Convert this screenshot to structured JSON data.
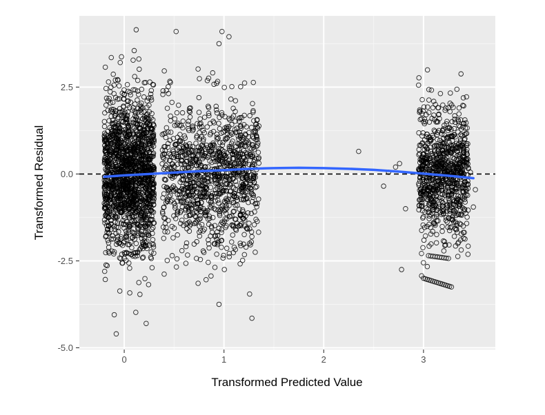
{
  "chart_data": {
    "type": "scatter",
    "xlabel": "Transformed Predicted Value",
    "ylabel": "Transformed Residual",
    "xlim": [
      -0.45,
      3.72
    ],
    "ylim": [
      -5.05,
      4.55
    ],
    "x_ticks": [
      0,
      1,
      2,
      3
    ],
    "x_tick_labels": [
      "0",
      "1",
      "2",
      "3"
    ],
    "y_ticks": [
      -5.0,
      -2.5,
      0.0,
      2.5
    ],
    "y_tick_labels": [
      "-5.0",
      "-2.5",
      "0.0",
      "2.5"
    ],
    "grid": true,
    "legend": "none",
    "reference_line": {
      "y": 0.0,
      "style": "dashed",
      "color": "#000000"
    },
    "smooth_curve": {
      "color": "#3366FF",
      "x": [
        -0.2,
        0.0,
        0.25,
        0.5,
        0.75,
        1.0,
        1.25,
        1.5,
        1.75,
        2.0,
        2.25,
        2.5,
        2.75,
        3.0,
        3.25,
        3.5
      ],
      "y": [
        -0.08,
        -0.04,
        0.0,
        0.04,
        0.08,
        0.11,
        0.15,
        0.17,
        0.18,
        0.17,
        0.15,
        0.12,
        0.07,
        0.01,
        -0.05,
        -0.12
      ]
    },
    "clusters": [
      {
        "x_range": [
          -0.2,
          0.3
        ],
        "n": 1700,
        "y_sd": 1.1
      },
      {
        "x_range": [
          0.38,
          0.65
        ],
        "n": 260,
        "y_sd": 1.0
      },
      {
        "x_range": [
          0.65,
          1.2
        ],
        "n": 700,
        "y_sd": 1.05
      },
      {
        "x_range": [
          1.18,
          1.35
        ],
        "n": 170,
        "y_sd": 1.1
      },
      {
        "x_range": [
          2.95,
          3.45
        ],
        "n": 900,
        "y_sd": 0.95
      }
    ],
    "extra_points": [
      {
        "x": -0.13,
        "y": 3.35
      },
      {
        "x": 0.12,
        "y": 4.15
      },
      {
        "x": 0.52,
        "y": 4.1
      },
      {
        "x": 0.98,
        "y": 4.1
      },
      {
        "x": 1.05,
        "y": 3.95
      },
      {
        "x": 0.95,
        "y": 3.75
      },
      {
        "x": 0.1,
        "y": 3.55
      },
      {
        "x": -0.08,
        "y": -4.6
      },
      {
        "x": -0.1,
        "y": -4.05
      },
      {
        "x": 0.22,
        "y": -4.3
      },
      {
        "x": 1.28,
        "y": -4.15
      },
      {
        "x": 0.95,
        "y": -3.75
      },
      {
        "x": 2.35,
        "y": 0.65
      },
      {
        "x": 2.6,
        "y": -0.35
      },
      {
        "x": 2.65,
        "y": 0.05
      },
      {
        "x": 2.72,
        "y": 0.2
      },
      {
        "x": 2.76,
        "y": 0.3
      },
      {
        "x": 2.78,
        "y": -2.75
      },
      {
        "x": 2.82,
        "y": -1.0
      },
      {
        "x": 3.5,
        "y": -0.95
      },
      {
        "x": 3.52,
        "y": -0.45
      },
      {
        "x": 3.47,
        "y": 0.05
      }
    ],
    "band_points": {
      "x_start": 3.0,
      "x_end": 3.28,
      "y_start": -3.0,
      "y_end": -3.25,
      "n": 16
    }
  }
}
